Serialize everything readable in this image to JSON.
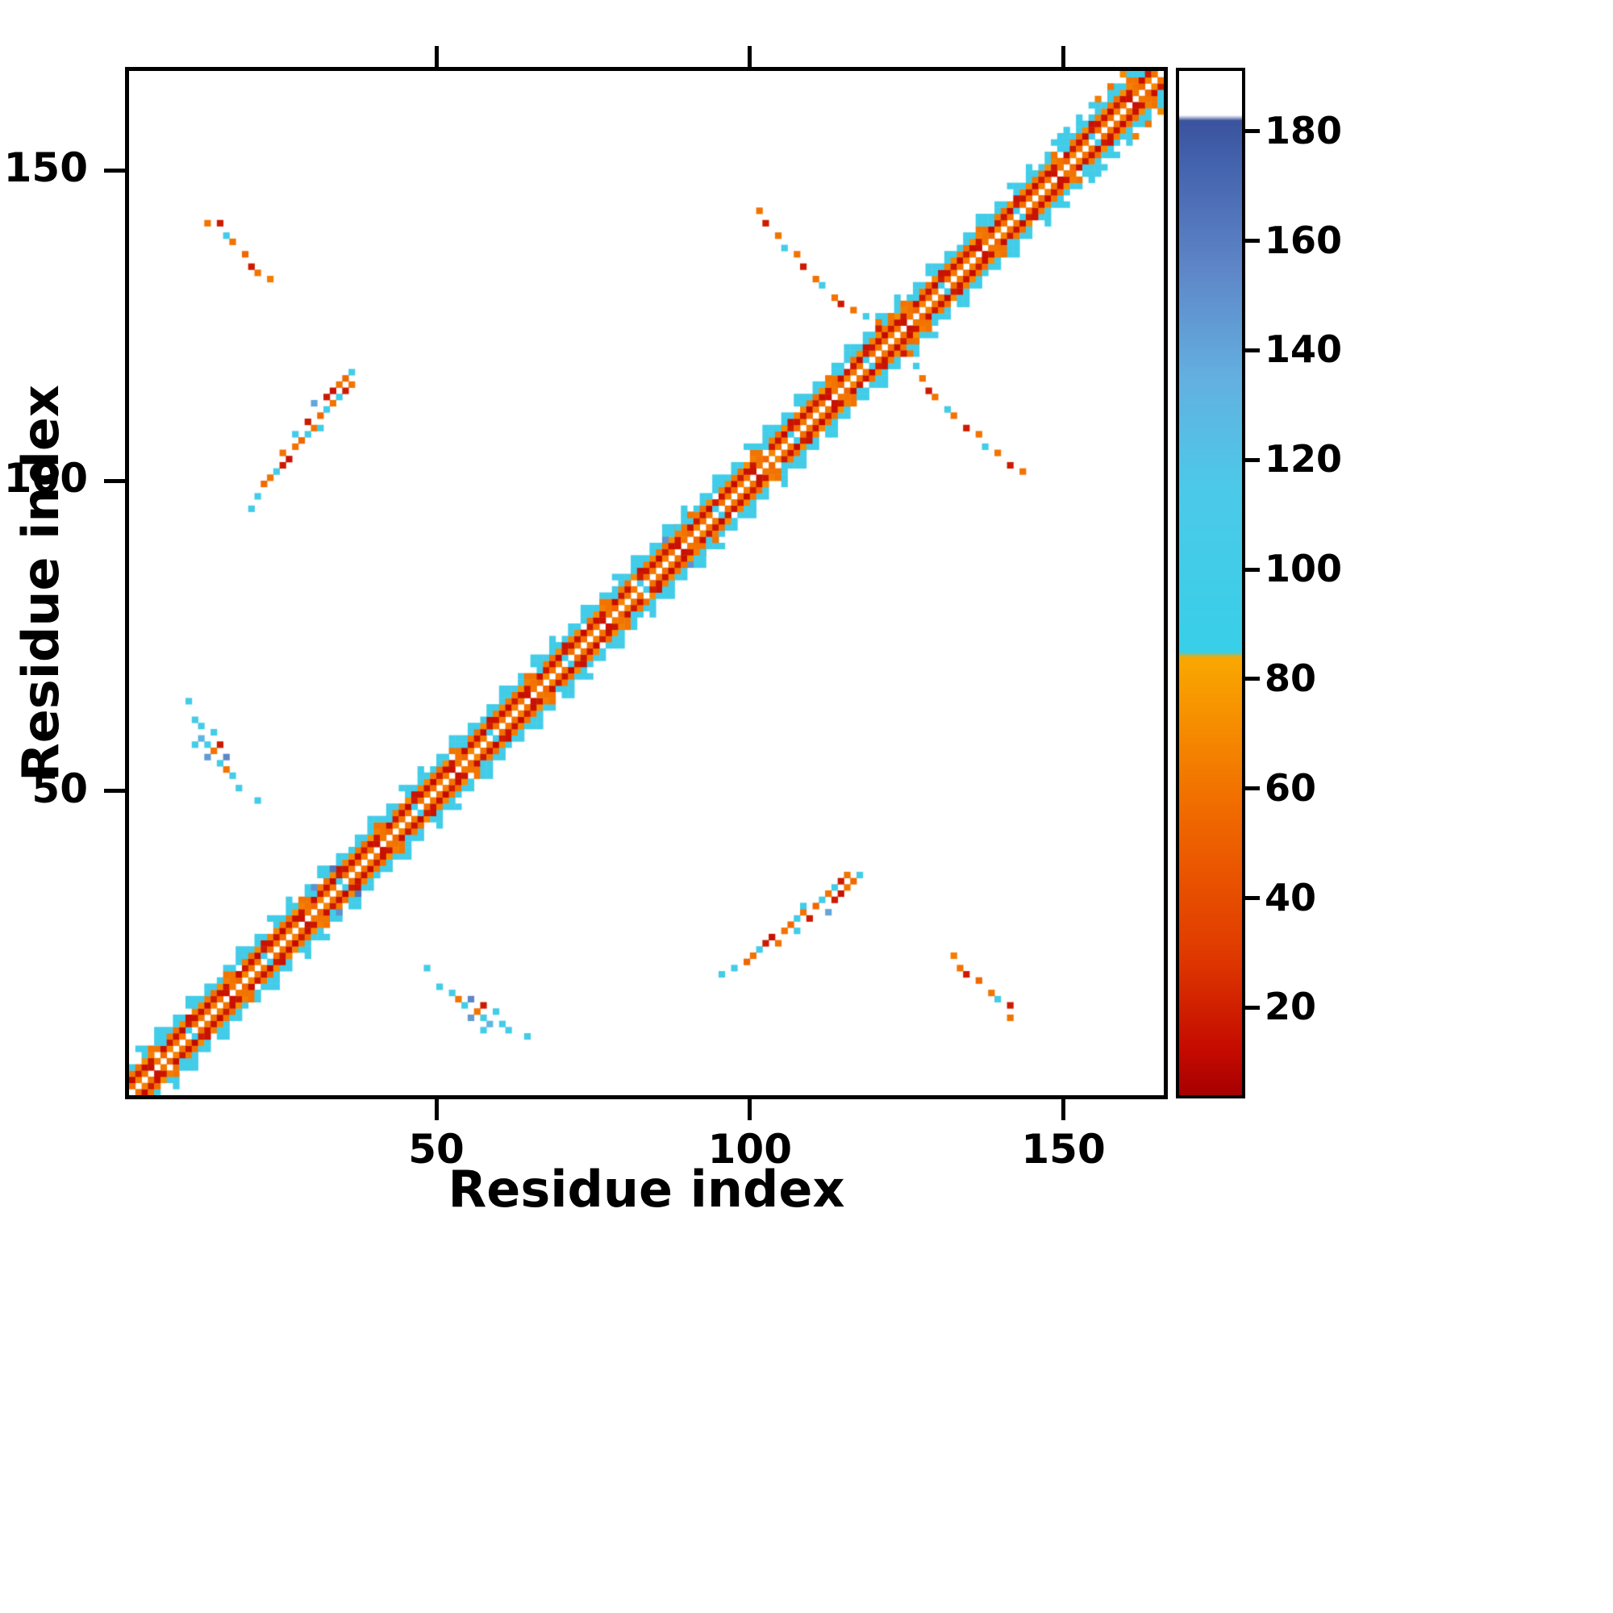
{
  "figure": {
    "background": "#ffffff"
  },
  "chart_data": {
    "type": "heatmap",
    "title": "",
    "xlabel": "Residue index",
    "ylabel": "Residue index",
    "xlim": [
      1,
      166
    ],
    "ylim": [
      1,
      166
    ],
    "xticks": [
      50,
      100,
      150
    ],
    "yticks": [
      50,
      100,
      150
    ],
    "n_residues": 165,
    "grid": false,
    "symmetric": true,
    "colorbar": {
      "position": "right",
      "vmin": 4,
      "vmax": 191,
      "ticks": [
        20,
        40,
        60,
        80,
        100,
        120,
        140,
        160,
        180
      ],
      "stops": [
        {
          "v": 4,
          "c": "#a50000"
        },
        {
          "v": 12,
          "c": "#c40a00"
        },
        {
          "v": 30,
          "c": "#e03a00"
        },
        {
          "v": 55,
          "c": "#f06800"
        },
        {
          "v": 75,
          "c": "#f79400"
        },
        {
          "v": 84,
          "c": "#f9a800"
        },
        {
          "v": 85,
          "c": "#38cfe8"
        },
        {
          "v": 115,
          "c": "#4cc9e8"
        },
        {
          "v": 135,
          "c": "#63b0e0"
        },
        {
          "v": 155,
          "c": "#5e86c8"
        },
        {
          "v": 175,
          "c": "#4361ac"
        },
        {
          "v": 182,
          "c": "#3a539e"
        },
        {
          "v": 183,
          "c": "#ffffff"
        },
        {
          "v": 191,
          "c": "#ffffff"
        }
      ]
    },
    "diagonal_band": {
      "start": 1,
      "end": 165,
      "offsets": [
        {
          "d": 1,
          "coverage": 1.0,
          "values": [
            62,
            58,
            65,
            60,
            15,
            62,
            55,
            68,
            60,
            62,
            100,
            58
          ]
        },
        {
          "d": 2,
          "coverage": 0.97,
          "values": [
            15,
            12,
            18,
            14,
            16,
            60,
            13,
            17,
            15,
            11,
            18,
            15
          ]
        },
        {
          "d": 3,
          "coverage": 0.95,
          "values": [
            68,
            62,
            58,
            72,
            65,
            60,
            100,
            63,
            58,
            70,
            15,
            65
          ]
        },
        {
          "d": 4,
          "coverage": 0.92,
          "values": [
            100,
            97,
            103,
            100,
            60,
            100,
            98,
            104,
            100,
            96,
            100,
            101
          ]
        },
        {
          "d": 5,
          "coverage": 0.5,
          "values": [
            100,
            102,
            97,
            100,
            100,
            98,
            103,
            100,
            96,
            100,
            100,
            99
          ]
        },
        {
          "d": 6,
          "coverage": 0.2,
          "values": [
            100,
            98,
            102,
            100,
            97,
            101,
            100,
            99,
            103,
            100
          ]
        }
      ]
    },
    "clusters": [
      {
        "name": "upper-left-antidiagonal",
        "points": [
          [
            13,
            141,
            60
          ],
          [
            15,
            141,
            18
          ],
          [
            16,
            139,
            100
          ],
          [
            17,
            138,
            60
          ],
          [
            19,
            136,
            55
          ],
          [
            20,
            134,
            18
          ],
          [
            21,
            133,
            60
          ],
          [
            23,
            132,
            65
          ]
        ]
      },
      {
        "name": "left-mid-parallel",
        "points": [
          [
            20,
            95,
            100
          ],
          [
            21,
            97,
            100
          ],
          [
            22,
            99,
            55
          ],
          [
            23,
            100,
            60
          ],
          [
            24,
            101,
            100
          ],
          [
            25,
            102,
            18
          ],
          [
            25,
            104,
            60
          ],
          [
            26,
            103,
            15
          ],
          [
            27,
            105,
            60
          ],
          [
            27,
            107,
            100
          ],
          [
            28,
            106,
            55
          ],
          [
            29,
            107,
            100
          ],
          [
            29,
            109,
            18
          ],
          [
            30,
            108,
            60
          ],
          [
            30,
            112,
            140
          ],
          [
            31,
            110,
            55
          ],
          [
            31,
            108,
            100
          ],
          [
            32,
            111,
            100
          ],
          [
            32,
            113,
            18
          ],
          [
            33,
            112,
            60
          ],
          [
            33,
            114,
            15
          ],
          [
            34,
            115,
            60
          ],
          [
            34,
            113,
            100
          ],
          [
            35,
            116,
            55
          ],
          [
            35,
            114,
            18
          ],
          [
            36,
            117,
            100
          ],
          [
            36,
            115,
            60
          ]
        ]
      },
      {
        "name": "left-lower",
        "points": [
          [
            10,
            64,
            100
          ],
          [
            11,
            61,
            100
          ],
          [
            12,
            60,
            100
          ],
          [
            12,
            58,
            130
          ],
          [
            13,
            57,
            100
          ],
          [
            13,
            55,
            145
          ],
          [
            14,
            56,
            60
          ],
          [
            14,
            59,
            100
          ],
          [
            15,
            54,
            100
          ],
          [
            16,
            53,
            60
          ],
          [
            16,
            55,
            155
          ],
          [
            17,
            52,
            100
          ],
          [
            18,
            50,
            100
          ],
          [
            21,
            48,
            100
          ],
          [
            11,
            57,
            100
          ],
          [
            15,
            57,
            18
          ]
        ]
      },
      {
        "name": "antidiagonal-arm",
        "points": [
          [
            101,
            143,
            60
          ],
          [
            102,
            141,
            18
          ],
          [
            104,
            139,
            60
          ],
          [
            105,
            137,
            100
          ],
          [
            107,
            136,
            60
          ],
          [
            108,
            134,
            18
          ],
          [
            110,
            132,
            60
          ],
          [
            111,
            131,
            100
          ],
          [
            113,
            129,
            60
          ],
          [
            114,
            128,
            18
          ],
          [
            116,
            127,
            60
          ],
          [
            118,
            126,
            100
          ],
          [
            120,
            125,
            60
          ]
        ]
      },
      {
        "name": "band-extras",
        "points": [
          [
            86,
            90,
            150
          ],
          [
            88,
            92,
            100
          ],
          [
            90,
            94,
            60
          ],
          [
            33,
            37,
            165
          ],
          [
            36,
            40,
            100
          ],
          [
            30,
            34,
            150
          ],
          [
            120,
            124,
            18
          ],
          [
            122,
            126,
            60
          ],
          [
            148,
            154,
            100
          ],
          [
            150,
            156,
            100
          ],
          [
            152,
            158,
            100
          ],
          [
            154,
            160,
            100
          ],
          [
            155,
            161,
            65
          ],
          [
            157,
            163,
            60
          ],
          [
            159,
            165,
            70
          ]
        ]
      }
    ]
  }
}
